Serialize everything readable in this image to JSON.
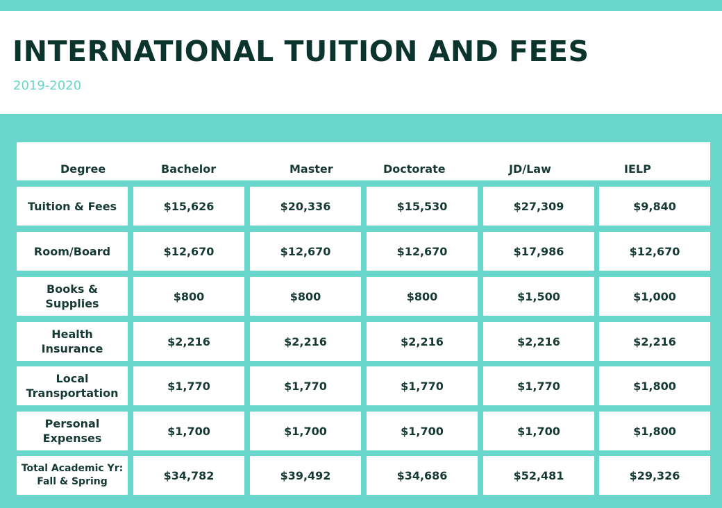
{
  "title": "INTERNATIONAL TUITION AND FEES",
  "subtitle": "2019-2020",
  "colors": {
    "accent": "#69d6cc",
    "title": "#0b342d",
    "text": "#163a33"
  },
  "table": {
    "header": {
      "degree": "Degree",
      "columns": [
        "Bachelor",
        "Master",
        "Doctorate",
        "JD/Law",
        "IELP"
      ]
    },
    "rows": [
      {
        "label": [
          "Tuition & Fees"
        ],
        "values": [
          "$15,626",
          "$20,336",
          "$15,530",
          "$27,309",
          "$9,840"
        ]
      },
      {
        "label": [
          "Room/Board"
        ],
        "values": [
          "$12,670",
          "$12,670",
          "$12,670",
          "$17,986",
          "$12,670"
        ]
      },
      {
        "label": [
          "Books &",
          "Supplies"
        ],
        "values": [
          "$800",
          "$800",
          "$800",
          "$1,500",
          "$1,000"
        ]
      },
      {
        "label": [
          "Health",
          "Insurance"
        ],
        "values": [
          "$2,216",
          "$2,216",
          "$2,216",
          "$2,216",
          "$2,216"
        ]
      },
      {
        "label": [
          "Local",
          "Transportation"
        ],
        "values": [
          "$1,770",
          "$1,770",
          "$1,770",
          "$1,770",
          "$1,800"
        ]
      },
      {
        "label": [
          "Personal",
          "Expenses"
        ],
        "values": [
          "$1,700",
          "$1,700",
          "$1,700",
          "$1,700",
          "$1,800"
        ]
      },
      {
        "label": [
          "Total Academic Yr:",
          "Fall & Spring"
        ],
        "values": [
          "$34,782",
          "$39,492",
          "$34,686",
          "$52,481",
          "$29,326"
        ]
      }
    ]
  }
}
